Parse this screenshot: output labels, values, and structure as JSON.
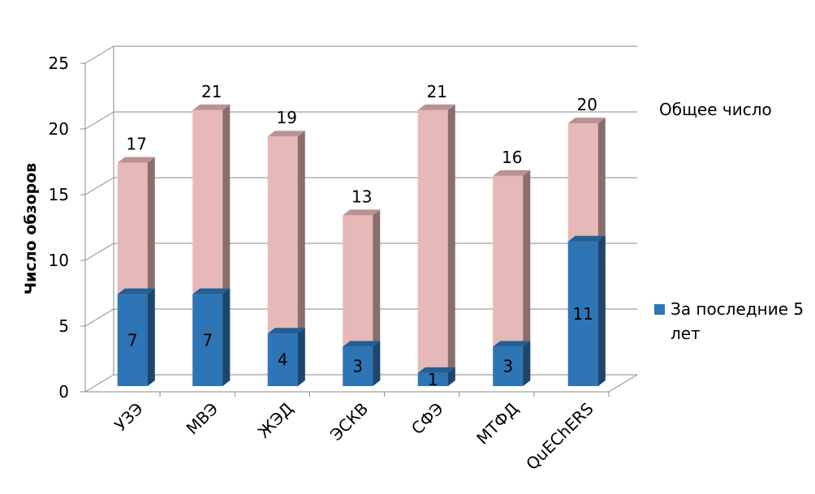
{
  "chart_data": {
    "type": "bar3d_overlap",
    "y_label": "Число обзоров",
    "categories": [
      "УЗЭ",
      "МВЭ",
      "ЖЭД",
      "ЭСКВ",
      "СФЭ",
      "МТФД",
      "QuEChERS"
    ],
    "series": [
      {
        "name": "Общее число",
        "color": "#e6b8b7",
        "values": [
          17,
          21,
          19,
          13,
          21,
          16,
          20
        ]
      },
      {
        "name": "За последние 5 лет",
        "color": "#2e75b6",
        "values": [
          7,
          7,
          4,
          3,
          1,
          3,
          11
        ]
      }
    ],
    "ylim": [
      0,
      25
    ],
    "yticks": [
      0,
      5,
      10,
      15,
      20,
      25
    ],
    "grid": true
  }
}
